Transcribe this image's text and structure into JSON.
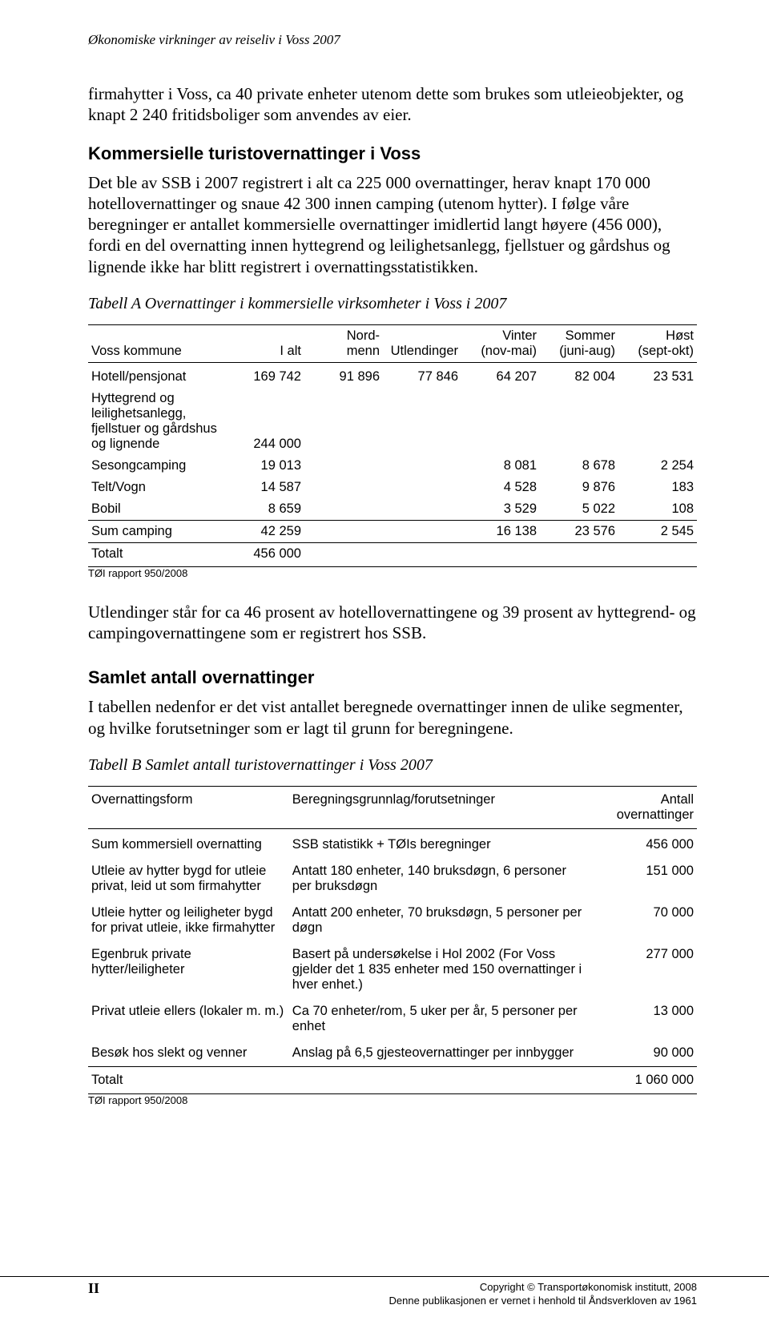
{
  "runningHead": "Økonomiske virkninger av reiseliv i Voss 2007",
  "para1": "firmahytter i Voss, ca 40 private enheter utenom dette som brukes som utleieobjekter, og knapt 2 240 fritidsboliger som anvendes av eier.",
  "sec1_heading": "Kommersielle turistovernattinger i Voss",
  "sec1_para": "Det ble av SSB i 2007 registrert i alt ca 225 000 overnattinger, herav knapt 170 000 hotellovernattinger og snaue 42 300 innen camping (utenom hytter). I følge våre beregninger er antallet kommersielle overnattinger imidlertid langt høyere (456 000), fordi en del overnatting innen hyttegrend og leilighetsanlegg, fjellstuer og gårdshus og lignende ikke har blitt registrert i overnattingsstatistikken.",
  "tableA_caption": "Tabell A  Overnattinger i kommersielle virksomheter i Voss i 2007",
  "tableA": {
    "headers": {
      "c1": "Voss kommune",
      "c2": "I alt",
      "c3a": "Nord-",
      "c3b": "menn",
      "c4": "Utlendinger",
      "c5a": "Vinter",
      "c5b": "(nov-mai)",
      "c6a": "Sommer",
      "c6b": "(juni-aug)",
      "c7a": "Høst",
      "c7b": "(sept-okt)"
    },
    "rows": [
      {
        "label": "Hotell/pensjonat",
        "c2": "169 742",
        "c3": "91 896",
        "c4": "77 846",
        "c5": "64 207",
        "c6": "82 004",
        "c7": "23 531"
      },
      {
        "label": "Hyttegrend og leilighetsanlegg, fjellstuer og gårdshus og lignende",
        "c2": "244 000",
        "c3": "",
        "c4": "",
        "c5": "",
        "c6": "",
        "c7": ""
      },
      {
        "label": "Sesongcamping",
        "c2": "19 013",
        "c3": "",
        "c4": "",
        "c5": "8 081",
        "c6": "8 678",
        "c7": "2 254"
      },
      {
        "label": "Telt/Vogn",
        "c2": "14 587",
        "c3": "",
        "c4": "",
        "c5": "4 528",
        "c6": "9 876",
        "c7": "183"
      },
      {
        "label": "Bobil",
        "c2": "8 659",
        "c3": "",
        "c4": "",
        "c5": "3 529",
        "c6": "5 022",
        "c7": "108"
      }
    ],
    "sum_row": {
      "label": "Sum camping",
      "c2": "42 259",
      "c3": "",
      "c4": "",
      "c5": "16 138",
      "c6": "23 576",
      "c7": "2 545"
    },
    "grand_row": {
      "label": "Totalt",
      "c2": "456 000"
    }
  },
  "tableA_source": "TØI rapport 950/2008",
  "mid_para": "Utlendinger står for ca 46 prosent av hotellovernattingene og 39 prosent av hyttegrend- og campingovernattingene som er registrert hos SSB.",
  "sec2_heading": "Samlet antall overnattinger",
  "sec2_para": "I tabellen nedenfor er det vist antallet beregnede overnattinger innen de ulike segmenter, og hvilke forutsetninger som er lagt til grunn for beregningene.",
  "tableB_caption": "Tabell B Samlet antall turistovernattinger i Voss 2007",
  "tableB": {
    "headers": {
      "c1": "Overnattingsform",
      "c2": "Beregningsgrunnlag/forutsetninger",
      "c3a": "Antall",
      "c3b": "overnattinger"
    },
    "rows": [
      {
        "a": "Sum kommersiell overnatting",
        "b": "SSB statistikk + TØIs beregninger",
        "c": "456 000"
      },
      {
        "a": "Utleie av hytter bygd for utleie privat, leid ut som firmahytter",
        "b": "Antatt 180 enheter, 140 bruksdøgn, 6 personer per bruksdøgn",
        "c": "151 000"
      },
      {
        "a": "Utleie hytter og leiligheter bygd for privat utleie, ikke firmahytter",
        "b": "Antatt 200 enheter, 70 bruksdøgn, 5 personer per døgn",
        "c": "70 000"
      },
      {
        "a": "Egenbruk private hytter/leiligheter",
        "b": "Basert på undersøkelse i Hol 2002 (For Voss gjelder det 1 835 enheter med 150 overnattinger i hver enhet.)",
        "c": "277 000"
      },
      {
        "a": "Privat utleie ellers (lokaler m. m.)",
        "b": "Ca 70 enheter/rom, 5 uker per år, 5 personer per enhet",
        "c": "13 000"
      },
      {
        "a": "Besøk hos slekt og venner",
        "b": "Anslag på 6,5 gjesteovernattinger per innbygger",
        "c": "90 000"
      }
    ],
    "total_row": {
      "a": "Totalt",
      "b": "",
      "c": "1 060 000"
    }
  },
  "tableB_source": "TØI rapport 950/2008",
  "pageNum": "II",
  "copyright_line1": "Copyright © Transportøkonomisk institutt, 2008",
  "copyright_line2": "Denne publikasjonen er vernet i henhold til Åndsverkloven av 1961"
}
